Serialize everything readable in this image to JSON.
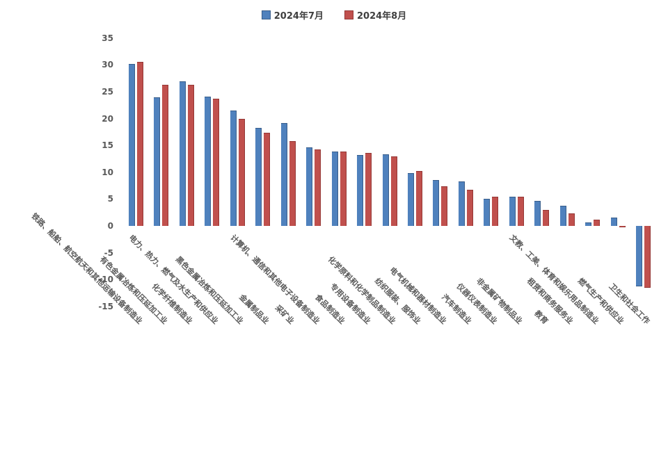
{
  "legend": [
    {
      "label": "2024年7月",
      "color": "#4f81bd",
      "border": "#385d8a"
    },
    {
      "label": "2024年8月",
      "color": "#c0504d",
      "border": "#943634"
    }
  ],
  "axis": {
    "tick_color": "#595959",
    "yticks": [
      35,
      30,
      25,
      20,
      15,
      10,
      5,
      0,
      -5,
      -10,
      -15
    ]
  },
  "chart_data": {
    "type": "bar",
    "title": "",
    "xlabel": "",
    "ylabel": "",
    "ylim": [
      -15,
      35
    ],
    "grid": false,
    "legend_position": "top",
    "categories": [
      "铁路、船舶、航空航天和其他运输设备制造业",
      "有色金属冶炼和压延加工业",
      "化学纤维制造业",
      "电力、热力、燃气及水生产和供应业",
      "黑色金属冶炼和压延加工业",
      "金属制品业",
      "采矿业",
      "计算机、通信和其他电子设备制造业",
      "食品制造业",
      "专用设备制造业",
      "化学原料和化学制品制造业",
      "纺织服装、服饰业",
      "电气机械和器材制造业",
      "汽车制造业",
      "仪器仪表制造业",
      "非金属矿物制品业",
      "教育",
      "租赁和商务服务业",
      "文教、工美、体育和娱乐用品制造业",
      "燃气生产和供应业",
      "卫生和社会工作"
    ],
    "series": [
      {
        "name": "2024年7月",
        "color": "#4f81bd",
        "border": "#385d8a",
        "values": [
          30.2,
          24.0,
          27.0,
          24.1,
          21.5,
          18.3,
          19.2,
          14.6,
          13.9,
          13.2,
          13.3,
          9.9,
          8.6,
          8.3,
          5.1,
          5.4,
          4.7,
          3.7,
          0.7,
          1.6,
          -11.3
        ]
      },
      {
        "name": "2024年8月",
        "color": "#c0504d",
        "border": "#943634",
        "values": [
          30.6,
          26.3,
          26.3,
          23.7,
          20.0,
          17.4,
          15.8,
          14.2,
          13.9,
          13.6,
          12.9,
          10.2,
          7.4,
          6.8,
          5.5,
          5.4,
          3.0,
          2.3,
          1.2,
          -0.2,
          -11.5
        ]
      }
    ]
  }
}
